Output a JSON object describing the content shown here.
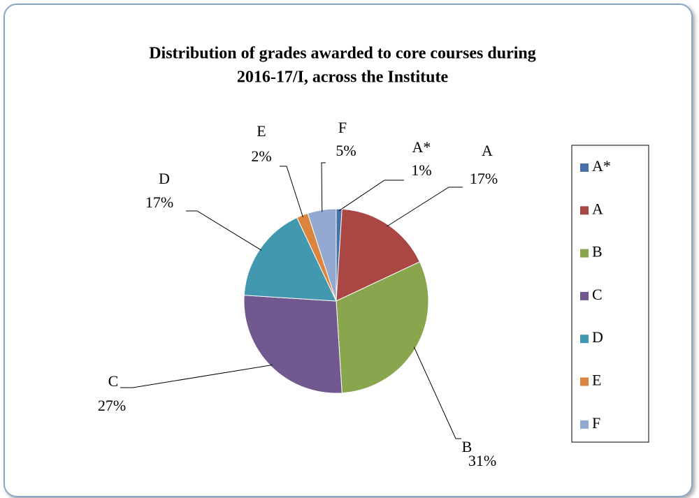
{
  "chart_data": {
    "type": "pie",
    "title": [
      "Distribution of grades awarded to core courses during",
      "2016-17/I, across the Institute"
    ],
    "categories": [
      "A*",
      "A",
      "B",
      "C",
      "D",
      "E",
      "F"
    ],
    "values": [
      1,
      17,
      31,
      27,
      17,
      2,
      5
    ],
    "value_labels": [
      "1%",
      "17%",
      "31%",
      "27%",
      "17%",
      "2%",
      "5%"
    ],
    "colors": [
      "#4572a7",
      "#aa4643",
      "#89a54e",
      "#71588f",
      "#4198af",
      "#db843d",
      "#93a9cf"
    ],
    "legend": "right"
  }
}
